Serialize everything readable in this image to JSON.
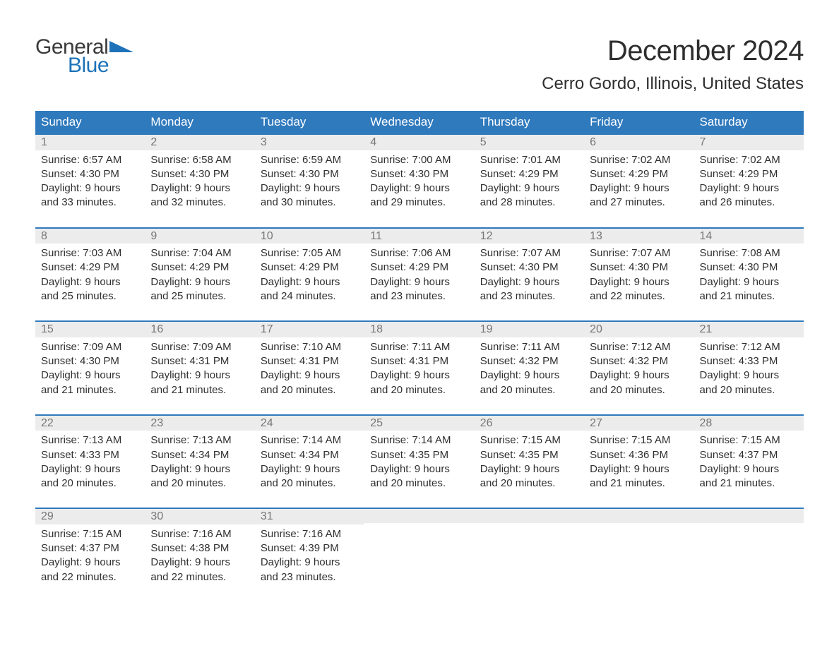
{
  "logo": {
    "text_general": "General",
    "text_blue": "Blue",
    "tri_color": "#1d72b8"
  },
  "title": "December 2024",
  "location": "Cerro Gordo, Illinois, United States",
  "colors": {
    "header_bg": "#2f79bd",
    "header_text": "#ffffff",
    "day_top_bg": "#ececec",
    "day_top_text": "#767676",
    "day_top_border": "#2f79bd",
    "body_text": "#2f2f2f",
    "page_bg": "#ffffff"
  },
  "day_headers": [
    "Sunday",
    "Monday",
    "Tuesday",
    "Wednesday",
    "Thursday",
    "Friday",
    "Saturday"
  ],
  "weeks": [
    [
      {
        "num": "1",
        "sunrise": "Sunrise: 6:57 AM",
        "sunset": "Sunset: 4:30 PM",
        "dl1": "Daylight: 9 hours",
        "dl2": "and 33 minutes."
      },
      {
        "num": "2",
        "sunrise": "Sunrise: 6:58 AM",
        "sunset": "Sunset: 4:30 PM",
        "dl1": "Daylight: 9 hours",
        "dl2": "and 32 minutes."
      },
      {
        "num": "3",
        "sunrise": "Sunrise: 6:59 AM",
        "sunset": "Sunset: 4:30 PM",
        "dl1": "Daylight: 9 hours",
        "dl2": "and 30 minutes."
      },
      {
        "num": "4",
        "sunrise": "Sunrise: 7:00 AM",
        "sunset": "Sunset: 4:30 PM",
        "dl1": "Daylight: 9 hours",
        "dl2": "and 29 minutes."
      },
      {
        "num": "5",
        "sunrise": "Sunrise: 7:01 AM",
        "sunset": "Sunset: 4:29 PM",
        "dl1": "Daylight: 9 hours",
        "dl2": "and 28 minutes."
      },
      {
        "num": "6",
        "sunrise": "Sunrise: 7:02 AM",
        "sunset": "Sunset: 4:29 PM",
        "dl1": "Daylight: 9 hours",
        "dl2": "and 27 minutes."
      },
      {
        "num": "7",
        "sunrise": "Sunrise: 7:02 AM",
        "sunset": "Sunset: 4:29 PM",
        "dl1": "Daylight: 9 hours",
        "dl2": "and 26 minutes."
      }
    ],
    [
      {
        "num": "8",
        "sunrise": "Sunrise: 7:03 AM",
        "sunset": "Sunset: 4:29 PM",
        "dl1": "Daylight: 9 hours",
        "dl2": "and 25 minutes."
      },
      {
        "num": "9",
        "sunrise": "Sunrise: 7:04 AM",
        "sunset": "Sunset: 4:29 PM",
        "dl1": "Daylight: 9 hours",
        "dl2": "and 25 minutes."
      },
      {
        "num": "10",
        "sunrise": "Sunrise: 7:05 AM",
        "sunset": "Sunset: 4:29 PM",
        "dl1": "Daylight: 9 hours",
        "dl2": "and 24 minutes."
      },
      {
        "num": "11",
        "sunrise": "Sunrise: 7:06 AM",
        "sunset": "Sunset: 4:29 PM",
        "dl1": "Daylight: 9 hours",
        "dl2": "and 23 minutes."
      },
      {
        "num": "12",
        "sunrise": "Sunrise: 7:07 AM",
        "sunset": "Sunset: 4:30 PM",
        "dl1": "Daylight: 9 hours",
        "dl2": "and 23 minutes."
      },
      {
        "num": "13",
        "sunrise": "Sunrise: 7:07 AM",
        "sunset": "Sunset: 4:30 PM",
        "dl1": "Daylight: 9 hours",
        "dl2": "and 22 minutes."
      },
      {
        "num": "14",
        "sunrise": "Sunrise: 7:08 AM",
        "sunset": "Sunset: 4:30 PM",
        "dl1": "Daylight: 9 hours",
        "dl2": "and 21 minutes."
      }
    ],
    [
      {
        "num": "15",
        "sunrise": "Sunrise: 7:09 AM",
        "sunset": "Sunset: 4:30 PM",
        "dl1": "Daylight: 9 hours",
        "dl2": "and 21 minutes."
      },
      {
        "num": "16",
        "sunrise": "Sunrise: 7:09 AM",
        "sunset": "Sunset: 4:31 PM",
        "dl1": "Daylight: 9 hours",
        "dl2": "and 21 minutes."
      },
      {
        "num": "17",
        "sunrise": "Sunrise: 7:10 AM",
        "sunset": "Sunset: 4:31 PM",
        "dl1": "Daylight: 9 hours",
        "dl2": "and 20 minutes."
      },
      {
        "num": "18",
        "sunrise": "Sunrise: 7:11 AM",
        "sunset": "Sunset: 4:31 PM",
        "dl1": "Daylight: 9 hours",
        "dl2": "and 20 minutes."
      },
      {
        "num": "19",
        "sunrise": "Sunrise: 7:11 AM",
        "sunset": "Sunset: 4:32 PM",
        "dl1": "Daylight: 9 hours",
        "dl2": "and 20 minutes."
      },
      {
        "num": "20",
        "sunrise": "Sunrise: 7:12 AM",
        "sunset": "Sunset: 4:32 PM",
        "dl1": "Daylight: 9 hours",
        "dl2": "and 20 minutes."
      },
      {
        "num": "21",
        "sunrise": "Sunrise: 7:12 AM",
        "sunset": "Sunset: 4:33 PM",
        "dl1": "Daylight: 9 hours",
        "dl2": "and 20 minutes."
      }
    ],
    [
      {
        "num": "22",
        "sunrise": "Sunrise: 7:13 AM",
        "sunset": "Sunset: 4:33 PM",
        "dl1": "Daylight: 9 hours",
        "dl2": "and 20 minutes."
      },
      {
        "num": "23",
        "sunrise": "Sunrise: 7:13 AM",
        "sunset": "Sunset: 4:34 PM",
        "dl1": "Daylight: 9 hours",
        "dl2": "and 20 minutes."
      },
      {
        "num": "24",
        "sunrise": "Sunrise: 7:14 AM",
        "sunset": "Sunset: 4:34 PM",
        "dl1": "Daylight: 9 hours",
        "dl2": "and 20 minutes."
      },
      {
        "num": "25",
        "sunrise": "Sunrise: 7:14 AM",
        "sunset": "Sunset: 4:35 PM",
        "dl1": "Daylight: 9 hours",
        "dl2": "and 20 minutes."
      },
      {
        "num": "26",
        "sunrise": "Sunrise: 7:15 AM",
        "sunset": "Sunset: 4:35 PM",
        "dl1": "Daylight: 9 hours",
        "dl2": "and 20 minutes."
      },
      {
        "num": "27",
        "sunrise": "Sunrise: 7:15 AM",
        "sunset": "Sunset: 4:36 PM",
        "dl1": "Daylight: 9 hours",
        "dl2": "and 21 minutes."
      },
      {
        "num": "28",
        "sunrise": "Sunrise: 7:15 AM",
        "sunset": "Sunset: 4:37 PM",
        "dl1": "Daylight: 9 hours",
        "dl2": "and 21 minutes."
      }
    ],
    [
      {
        "num": "29",
        "sunrise": "Sunrise: 7:15 AM",
        "sunset": "Sunset: 4:37 PM",
        "dl1": "Daylight: 9 hours",
        "dl2": "and 22 minutes."
      },
      {
        "num": "30",
        "sunrise": "Sunrise: 7:16 AM",
        "sunset": "Sunset: 4:38 PM",
        "dl1": "Daylight: 9 hours",
        "dl2": "and 22 minutes."
      },
      {
        "num": "31",
        "sunrise": "Sunrise: 7:16 AM",
        "sunset": "Sunset: 4:39 PM",
        "dl1": "Daylight: 9 hours",
        "dl2": "and 23 minutes."
      },
      null,
      null,
      null,
      null
    ]
  ]
}
